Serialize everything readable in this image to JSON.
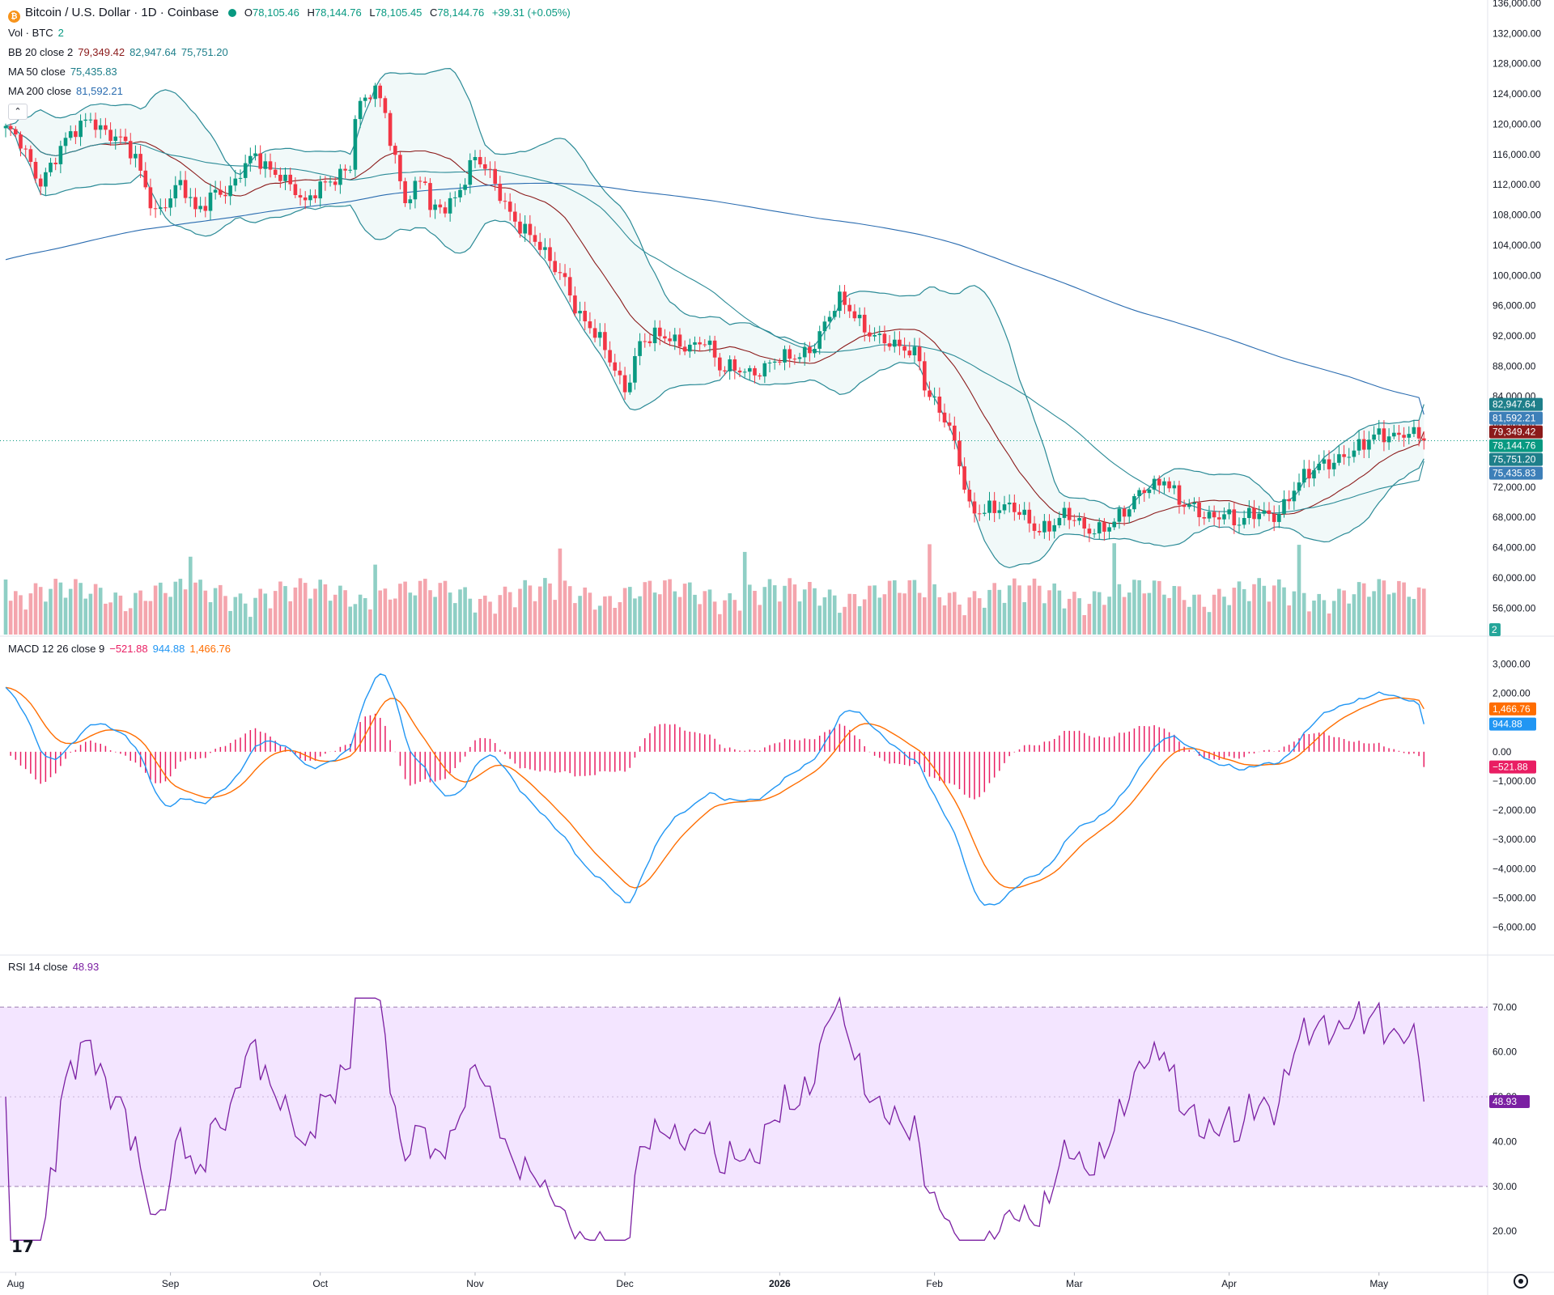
{
  "legend": {
    "symbol_title": "Bitcoin / U.S. Dollar · 1D · Coinbase",
    "o_label": "O",
    "o": "78,105.46",
    "h_label": "H",
    "h": "78,144.76",
    "l_label": "L",
    "l": "78,105.45",
    "c_label": "C",
    "c": "78,144.76",
    "change": "+39.31 (+0.05%)",
    "vol_label": "Vol · BTC",
    "vol_value": "2",
    "bb_label": "BB 20 close 2",
    "bb_basis": "79,349.42",
    "bb_upper": "82,947.64",
    "bb_lower": "75,751.20",
    "ma50_label": "MA 50 close",
    "ma50": "75,435.83",
    "ma200_label": "MA 200 close",
    "ma200": "81,592.21",
    "macd_label": "MACD 12 26 close 9",
    "macd_hist": "−521.88",
    "macd_line": "944.88",
    "macd_signal": "1,466.76",
    "rsi_label": "RSI 14 close",
    "rsi": "48.93",
    "collapse_glyph": "⌃"
  },
  "icons": {
    "btc": "bitcoin-icon",
    "logo": "tradingview-logo-icon",
    "settings": "gear-icon"
  },
  "colors": {
    "up": "#089981",
    "down": "#f23645",
    "bb": "#2a8a96",
    "ma50": "#8b1a1a",
    "ma200": "#2962ff",
    "macd": "#2196f3",
    "signal": "#ff6d00",
    "hist": "#e91e63",
    "rsi": "#7b1fa2",
    "rsi_bg": "#f3e5ff"
  },
  "chart_data": [
    {
      "type": "candlestick",
      "title": "Bitcoin / U.S. Dollar · 1D · Coinbase",
      "y_ticks": [
        "56,000.00",
        "60,000.00",
        "64,000.00",
        "68,000.00",
        "72,000.00",
        "76,000.00",
        "80,000.00",
        "84,000.00",
        "88,000.00",
        "92,000.00",
        "96,000.00",
        "100,000.00",
        "104,000.00",
        "108,000.00",
        "112,000.00",
        "116,000.00",
        "120,000.00",
        "124,000.00",
        "128,000.00",
        "132,000.00",
        "136,000.00"
      ],
      "y_tick_values": [
        56000,
        60000,
        64000,
        68000,
        72000,
        76000,
        80000,
        84000,
        88000,
        92000,
        96000,
        100000,
        104000,
        108000,
        112000,
        116000,
        120000,
        124000,
        128000,
        132000,
        136000
      ],
      "ylim": [
        52500,
        136000
      ],
      "x_labels": [
        "Aug",
        "Sep",
        "Oct",
        "Nov",
        "Dec",
        "2026",
        "Feb",
        "Mar",
        "Apr",
        "May"
      ],
      "close_anchors": {
        "days": [
          0,
          3,
          7,
          12,
          17,
          22,
          26,
          30,
          35,
          38,
          42,
          45,
          50,
          55,
          60,
          63,
          66,
          69,
          70,
          74,
          76,
          80,
          84,
          85,
          90,
          94,
          98,
          103,
          108,
          112,
          115,
          120,
          124,
          127,
          131,
          140,
          143,
          147,
          152,
          156,
          162,
          167,
          170,
          173,
          178,
          183,
          184,
          187,
          190,
          193,
          197,
          200,
          206,
          212,
          216,
          220,
          225,
          228,
          232,
          236,
          240,
          244,
          247,
          251,
          254,
          258,
          262,
          264,
          268,
          272,
          275,
          280,
          284
        ],
        "values": [
          118500,
          117500,
          113000,
          117000,
          121500,
          118000,
          115000,
          109000,
          111500,
          108000,
          112000,
          111200,
          115500,
          114000,
          108500,
          112000,
          113800,
          114200,
          120500,
          124500,
          122000,
          110000,
          112000,
          108000,
          111000,
          115000,
          112000,
          107000,
          102000,
          100000,
          95000,
          89500,
          85500,
          91500,
          91200,
          91500,
          86800,
          88200,
          87500,
          88500,
          91500,
          96000,
          95000,
          93200,
          89800,
          89800,
          86000,
          82500,
          77000,
          69000,
          70000,
          69000,
          67000,
          68000,
          66000,
          67500,
          68500,
          71500,
          74000,
          69000,
          67800,
          69500,
          67000,
          68000,
          68700,
          72000,
          73500,
          75000,
          77000,
          77000,
          78500,
          80000,
          78145
        ]
      },
      "last_close": 78144.76,
      "price_labels": {
        "bb_upper": 82947.64,
        "ma200": 81592.21,
        "bb_basis": 79349.42,
        "last": 78144.76,
        "bb_lower": 75751.2,
        "ma50": 75435.83
      }
    },
    {
      "type": "bar",
      "name": "Vol · BTC",
      "last_value": "2"
    },
    {
      "type": "line",
      "name": "MACD 12 26 close 9",
      "y_ticks": [
        "3,000.00",
        "2,000.00",
        "1,000.00",
        "0.00",
        "−1,000.00",
        "−2,000.00",
        "−3,000.00",
        "−4,000.00",
        "−5,000.00",
        "−6,000.00"
      ],
      "y_tick_values": [
        3000,
        2000,
        1000,
        0,
        -1000,
        -2000,
        -3000,
        -4000,
        -5000,
        -6000
      ],
      "ylim": [
        -6400,
        3400
      ],
      "last": {
        "macd": 944.88,
        "signal": 1466.76,
        "histogram": -521.88
      }
    },
    {
      "type": "line",
      "name": "RSI 14 close",
      "y_ticks": [
        "70.00",
        "60.00",
        "50.00",
        "40.00",
        "30.00",
        "20.00"
      ],
      "y_tick_values": [
        70,
        60,
        50,
        40,
        30,
        20
      ],
      "bands": [
        30,
        70
      ],
      "ylim": [
        13,
        78
      ],
      "last": 48.93
    }
  ]
}
